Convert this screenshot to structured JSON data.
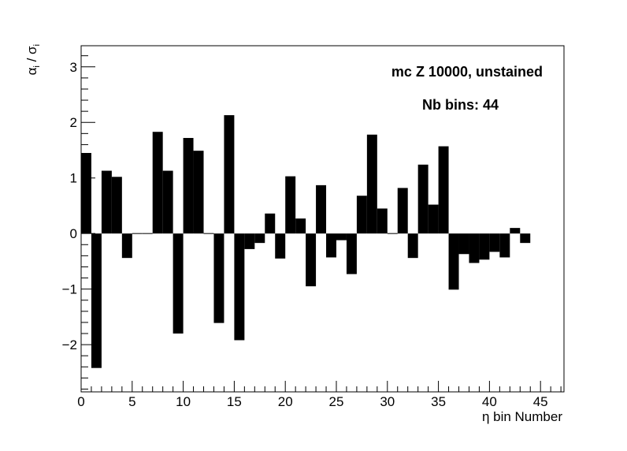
{
  "chart_data": {
    "type": "bar",
    "title": "",
    "xlabel": "η bin Number",
    "ylabel": "αi / σi",
    "ylabel_main": "α",
    "ylabel_sub": "i",
    "ylabel_sep": " / σ",
    "ylabel_sub2": "i",
    "xlim": [
      0,
      47.3
    ],
    "ylim": [
      -2.85,
      3.38
    ],
    "x_ticks": [
      0,
      5,
      10,
      15,
      20,
      25,
      30,
      35,
      40,
      45
    ],
    "x_tick_labels": [
      "0",
      "5",
      "10",
      "15",
      "20",
      "25",
      "30",
      "35",
      "40",
      "45"
    ],
    "y_ticks": [
      -2,
      -1,
      0,
      1,
      2,
      3
    ],
    "y_tick_labels": [
      "−2",
      "−1",
      "0",
      "1",
      "2",
      "3"
    ],
    "bin_width": 1,
    "x": [
      0,
      1,
      2,
      3,
      4,
      5,
      6,
      7,
      8,
      9,
      10,
      11,
      12,
      13,
      14,
      15,
      16,
      17,
      18,
      19,
      20,
      21,
      22,
      23,
      24,
      25,
      26,
      27,
      28,
      29,
      30,
      31,
      32,
      33,
      34,
      35,
      36,
      37,
      38,
      39,
      40,
      41,
      42,
      43
    ],
    "values": [
      1.45,
      -2.42,
      1.13,
      1.02,
      -0.44,
      0.01,
      0.01,
      1.83,
      1.13,
      -1.8,
      1.72,
      1.49,
      0.01,
      -1.61,
      2.13,
      -1.92,
      -0.28,
      -0.17,
      0.36,
      -0.45,
      1.03,
      0.27,
      -0.95,
      0.87,
      -0.43,
      -0.12,
      -0.73,
      0.68,
      1.78,
      0.45,
      0.01,
      0.82,
      -0.44,
      1.24,
      0.52,
      1.57,
      -1.01,
      -0.37,
      -0.53,
      -0.47,
      -0.33,
      -0.43,
      0.1,
      -0.17
    ],
    "bar_color": "#000000",
    "grid": false,
    "legend": "none",
    "annotations": [
      "mc Z 10000, unstained",
      "Nb bins: 44"
    ]
  }
}
